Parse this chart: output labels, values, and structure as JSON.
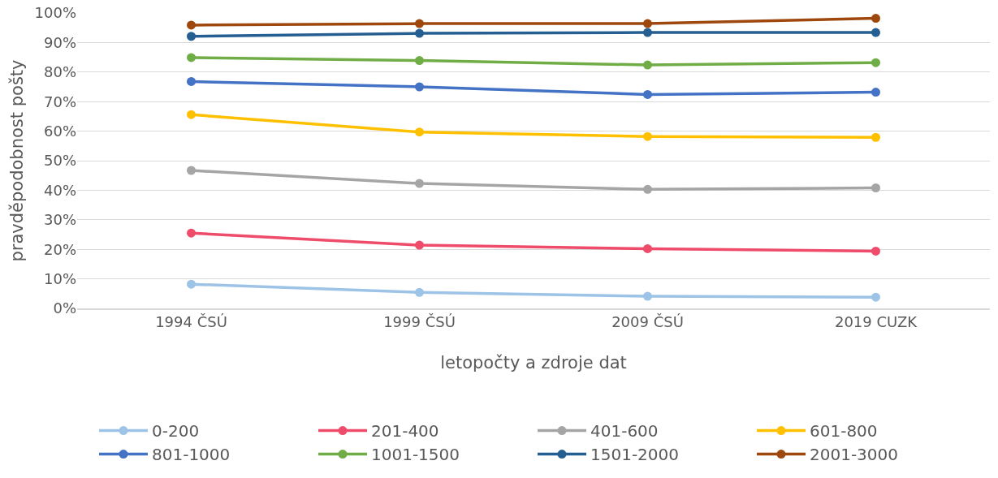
{
  "chart_data": {
    "type": "line",
    "xlabel": "letopočty a zdroje dat",
    "ylabel": "pravděpodobnost pošty",
    "categories": [
      "1994 ČSÚ",
      "1999 ČSÚ",
      "2009 ČSÚ",
      "2019 CUZK"
    ],
    "series": [
      {
        "name": "0-200",
        "color": "#9dc3e6",
        "values": [
          8.2,
          5.4,
          4.1,
          3.8
        ]
      },
      {
        "name": "201-400",
        "color": "#ee4c6a",
        "values": [
          25.5,
          21.4,
          20.2,
          19.4
        ]
      },
      {
        "name": "401-600",
        "color": "#a5a5a5",
        "values": [
          46.7,
          42.3,
          40.3,
          40.8
        ]
      },
      {
        "name": "601-800",
        "color": "#ffc000",
        "values": [
          65.6,
          59.7,
          58.2,
          57.9
        ]
      },
      {
        "name": "801-1000",
        "color": "#4472c4",
        "values": [
          76.8,
          75.0,
          72.4,
          73.2
        ]
      },
      {
        "name": "1001-1500",
        "color": "#70ad47",
        "values": [
          84.9,
          83.9,
          82.4,
          83.2
        ]
      },
      {
        "name": "1501-2000",
        "color": "#255e91",
        "values": [
          92.1,
          93.1,
          93.4,
          93.4
        ]
      },
      {
        "name": "2001-3000",
        "color": "#9e480e",
        "values": [
          95.9,
          96.4,
          96.4,
          98.2
        ]
      }
    ],
    "ylim": [
      0,
      100
    ],
    "yticks": [
      {
        "value": 0,
        "label": "0%"
      },
      {
        "value": 10,
        "label": "10%"
      },
      {
        "value": 20,
        "label": "20%"
      },
      {
        "value": 30,
        "label": "30%"
      },
      {
        "value": 40,
        "label": "40%"
      },
      {
        "value": 50,
        "label": "50%"
      },
      {
        "value": 60,
        "label": "60%"
      },
      {
        "value": 70,
        "label": "70%"
      },
      {
        "value": 80,
        "label": "80%"
      },
      {
        "value": 90,
        "label": "90%"
      },
      {
        "value": 100,
        "label": "100%"
      }
    ],
    "grid": "y",
    "legend": "bottom",
    "marker": "circle",
    "line_style": "solid"
  }
}
